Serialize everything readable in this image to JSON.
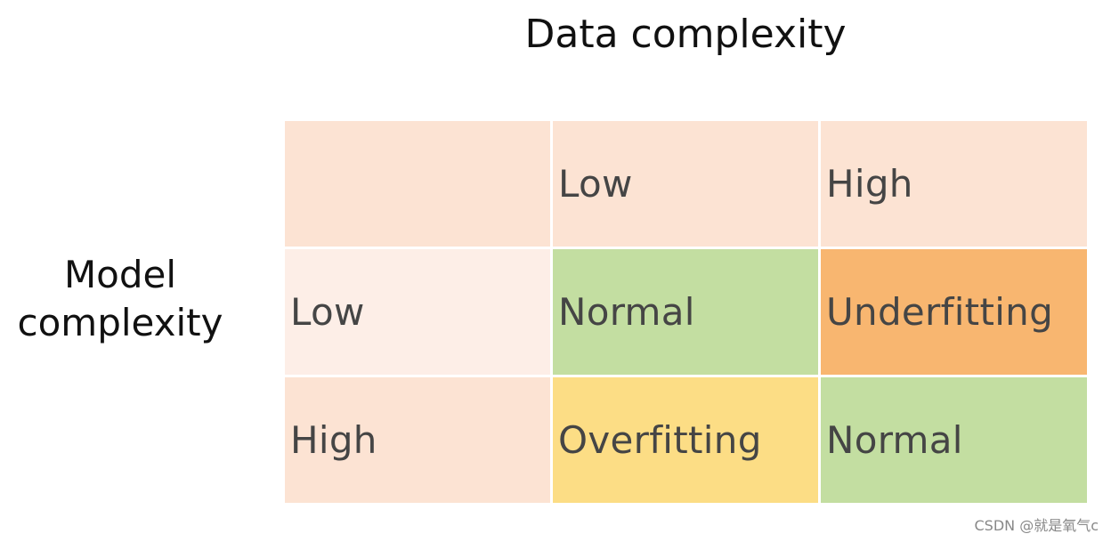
{
  "column_axis_title": "Data complexity",
  "row_axis_title_line1": "Model",
  "row_axis_title_line2": "complexity",
  "column_headers": [
    "Low",
    "High"
  ],
  "row_headers": [
    "Low",
    "High"
  ],
  "cells": [
    [
      "Normal",
      "Underfitting"
    ],
    [
      "Overfitting",
      "Normal"
    ]
  ],
  "colors": {
    "header_bg": "#fce3d3",
    "row_low_bg": "#fdeee7",
    "normal": "#c3dea1",
    "underfitting": "#f8b670",
    "overfitting": "#fcdd85"
  },
  "watermark": "CSDN @就是氧气c"
}
